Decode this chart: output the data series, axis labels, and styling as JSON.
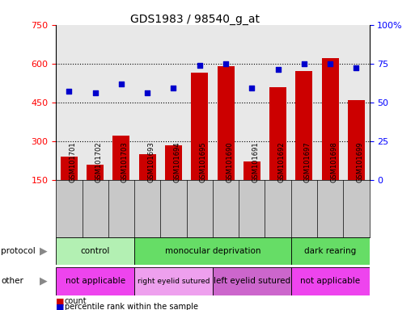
{
  "title": "GDS1983 / 98540_g_at",
  "samples": [
    "GSM101701",
    "GSM101702",
    "GSM101703",
    "GSM101693",
    "GSM101694",
    "GSM101695",
    "GSM101690",
    "GSM101691",
    "GSM101692",
    "GSM101697",
    "GSM101698",
    "GSM101699"
  ],
  "bar_values": [
    240,
    210,
    320,
    250,
    285,
    565,
    590,
    220,
    510,
    570,
    620,
    460
  ],
  "percentile_values": [
    57,
    56,
    62,
    56,
    59,
    74,
    75,
    59,
    71,
    75,
    75,
    72
  ],
  "bar_color": "#cc0000",
  "dot_color": "#0000cc",
  "ylim_left": [
    150,
    750
  ],
  "ylim_right": [
    0,
    100
  ],
  "yticks_left": [
    150,
    300,
    450,
    600,
    750
  ],
  "yticks_right": [
    0,
    25,
    50,
    75,
    100
  ],
  "ytick_labels_right": [
    "0",
    "25",
    "50",
    "75",
    "100%"
  ],
  "protocol_groups": [
    {
      "label": "control",
      "start": 0,
      "end": 3,
      "color": "#b3f0b3"
    },
    {
      "label": "monocular deprivation",
      "start": 3,
      "end": 9,
      "color": "#66dd66"
    },
    {
      "label": "dark rearing",
      "start": 9,
      "end": 12,
      "color": "#66dd66"
    }
  ],
  "other_groups": [
    {
      "label": "not applicable",
      "start": 0,
      "end": 3,
      "color": "#ee44ee"
    },
    {
      "label": "right eyelid sutured",
      "start": 3,
      "end": 6,
      "color": "#eea0ee"
    },
    {
      "label": "left eyelid sutured",
      "start": 6,
      "end": 9,
      "color": "#cc66cc"
    },
    {
      "label": "not applicable",
      "start": 9,
      "end": 12,
      "color": "#ee44ee"
    }
  ],
  "legend_count_label": "count",
  "legend_pct_label": "percentile rank within the sample",
  "protocol_label": "protocol",
  "other_label": "other",
  "xlabels_bg": "#c8c8c8",
  "background_color": "#ffffff",
  "chart_bg": "#e8e8e8"
}
